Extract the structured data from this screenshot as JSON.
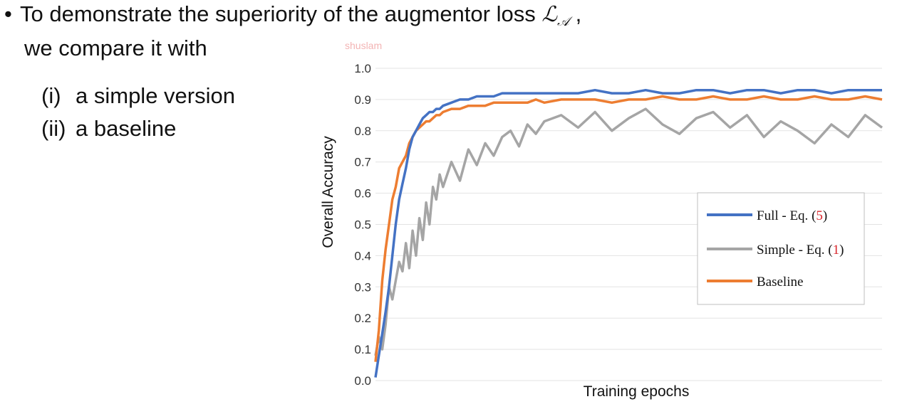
{
  "slide": {
    "bullet_symbol": "•",
    "line1_text": "To demonstrate the superiority of the augmentor loss ",
    "loss_symbol": "ℒ",
    "loss_subscript": "𝒜",
    "line1_tail": " ,",
    "line2_text": "we compare it with",
    "items": [
      {
        "num": "(i)",
        "text": "a simple version"
      },
      {
        "num": "(ii)",
        "text": "a baseline"
      }
    ],
    "watermark": "shuslam"
  },
  "chart_data": {
    "type": "line",
    "xlabel": "Training epochs",
    "ylabel": "Overall Accuracy",
    "ylim": [
      0.0,
      1.0
    ],
    "yticks": [
      "0.0",
      "0.1",
      "0.2",
      "0.3",
      "0.4",
      "0.5",
      "0.6",
      "0.7",
      "0.8",
      "0.9",
      "1.0"
    ],
    "grid": true,
    "legend_position": "right",
    "colors": {
      "full": "#4472c4",
      "simple": "#a5a5a5",
      "baseline": "#ed7d31",
      "ref": "#d9262c"
    },
    "x": [
      0,
      2,
      4,
      6,
      8,
      10,
      12,
      14,
      16,
      18,
      20,
      22,
      24,
      26,
      28,
      30,
      32,
      34,
      36,
      38,
      40,
      45,
      50,
      55,
      60,
      65,
      70,
      75,
      80,
      85,
      90,
      95,
      100,
      110,
      120,
      130,
      140,
      150,
      160,
      170,
      180,
      190,
      200,
      210,
      220,
      230,
      240,
      250,
      260,
      270,
      280,
      290,
      300
    ],
    "series": [
      {
        "name": "Full - Eq. ",
        "ref": "(5)",
        "color": "#4472c4",
        "values": [
          0.01,
          0.08,
          0.15,
          0.22,
          0.3,
          0.4,
          0.5,
          0.58,
          0.63,
          0.68,
          0.74,
          0.78,
          0.8,
          0.82,
          0.84,
          0.85,
          0.86,
          0.86,
          0.87,
          0.87,
          0.88,
          0.89,
          0.9,
          0.9,
          0.91,
          0.91,
          0.91,
          0.92,
          0.92,
          0.92,
          0.92,
          0.92,
          0.92,
          0.92,
          0.92,
          0.93,
          0.92,
          0.92,
          0.93,
          0.92,
          0.92,
          0.93,
          0.93,
          0.92,
          0.93,
          0.93,
          0.92,
          0.93,
          0.93,
          0.92,
          0.93,
          0.93,
          0.93
        ]
      },
      {
        "name": "Simple - Eq. ",
        "ref": "(1)",
        "color": "#a5a5a5",
        "values": [
          0.08,
          0.14,
          0.1,
          0.18,
          0.3,
          0.26,
          0.32,
          0.38,
          0.35,
          0.44,
          0.36,
          0.48,
          0.4,
          0.52,
          0.45,
          0.57,
          0.5,
          0.62,
          0.58,
          0.66,
          0.62,
          0.7,
          0.64,
          0.74,
          0.69,
          0.76,
          0.72,
          0.78,
          0.8,
          0.75,
          0.82,
          0.79,
          0.83,
          0.85,
          0.81,
          0.86,
          0.8,
          0.84,
          0.87,
          0.82,
          0.79,
          0.84,
          0.86,
          0.81,
          0.85,
          0.78,
          0.83,
          0.8,
          0.76,
          0.82,
          0.78,
          0.85,
          0.81
        ]
      },
      {
        "name": "Baseline",
        "ref": "",
        "color": "#ed7d31",
        "values": [
          0.06,
          0.16,
          0.32,
          0.42,
          0.5,
          0.58,
          0.62,
          0.68,
          0.7,
          0.72,
          0.76,
          0.78,
          0.8,
          0.81,
          0.82,
          0.83,
          0.83,
          0.84,
          0.85,
          0.85,
          0.86,
          0.87,
          0.87,
          0.88,
          0.88,
          0.88,
          0.89,
          0.89,
          0.89,
          0.89,
          0.89,
          0.9,
          0.89,
          0.9,
          0.9,
          0.9,
          0.89,
          0.9,
          0.9,
          0.91,
          0.9,
          0.9,
          0.91,
          0.9,
          0.9,
          0.91,
          0.9,
          0.9,
          0.91,
          0.9,
          0.9,
          0.91,
          0.9
        ]
      }
    ]
  }
}
